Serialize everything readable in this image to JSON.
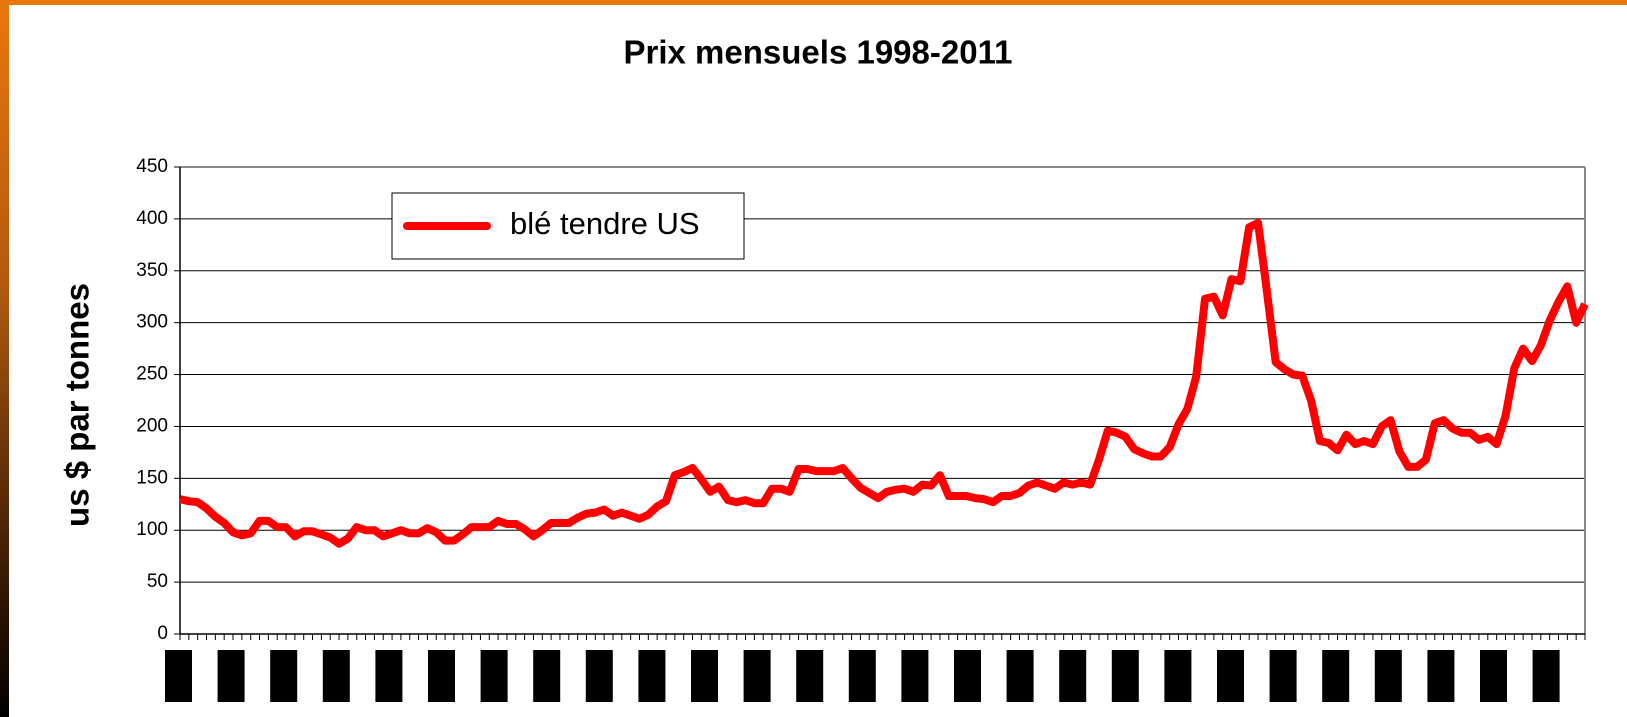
{
  "chart_data": {
    "type": "line",
    "title": "Prix mensuels 1998-2011",
    "ylabel": "us $ par tonnes",
    "legend": "upper left",
    "grid": true,
    "ylim": [
      0,
      450
    ],
    "yticks": [
      0,
      50,
      100,
      150,
      200,
      250,
      300,
      350,
      400,
      450
    ],
    "categories": [
      null,
      null,
      null,
      null,
      null,
      null,
      null,
      null,
      null,
      null,
      null,
      null,
      null,
      null,
      null,
      null,
      null,
      null,
      null,
      null,
      null,
      null,
      null,
      null,
      null,
      null,
      null,
      null,
      null,
      null,
      null,
      null,
      null,
      null,
      null,
      null,
      null,
      null,
      null,
      null,
      null,
      null,
      null,
      null,
      null,
      null,
      null,
      null,
      null,
      null,
      null,
      null,
      null,
      null,
      null,
      null,
      null,
      null,
      null,
      null,
      null,
      null,
      null,
      null,
      null,
      null,
      null,
      null,
      null,
      null,
      null,
      null,
      null,
      null,
      null,
      null,
      null,
      null,
      null,
      null,
      null,
      null,
      null,
      null,
      null,
      null,
      null,
      null,
      null,
      null,
      null,
      null,
      null,
      null,
      null,
      null,
      null,
      null,
      null,
      null,
      null,
      null,
      null,
      null,
      null,
      null,
      null,
      null,
      null,
      null,
      null,
      null,
      null,
      null,
      null,
      null,
      null,
      null,
      null,
      null,
      null,
      null,
      null,
      null,
      null,
      null,
      null,
      null,
      null,
      null,
      null,
      null,
      null,
      null,
      null,
      null,
      null,
      null,
      null,
      null,
      null,
      null,
      null,
      null,
      null,
      null,
      null,
      null,
      null,
      null,
      null,
      null,
      null,
      null,
      null,
      null,
      null,
      null,
      null,
      null
    ],
    "series": [
      {
        "name": "blé tendre US",
        "color": "#ff0000",
        "values": [
          130,
          128,
          127,
          121,
          113,
          107,
          98,
          95,
          97,
          109,
          109,
          103,
          103,
          94,
          99,
          99,
          96,
          93,
          87,
          92,
          103,
          100,
          100,
          94,
          97,
          100,
          97,
          97,
          102,
          98,
          90,
          90,
          96,
          103,
          103,
          103,
          109,
          106,
          106,
          101,
          94,
          100,
          107,
          107,
          107,
          112,
          116,
          117,
          120,
          114,
          117,
          114,
          111,
          115,
          123,
          128,
          153,
          156,
          160,
          149,
          137,
          142,
          129,
          127,
          129,
          126,
          126,
          140,
          140,
          137,
          159,
          159,
          157,
          157,
          157,
          160,
          150,
          141,
          136,
          131,
          137,
          139,
          140,
          137,
          144,
          143,
          153,
          133,
          133,
          133,
          131,
          130,
          127,
          133,
          133,
          136,
          143,
          146,
          143,
          140,
          146,
          144,
          146,
          144,
          168,
          196,
          194,
          190,
          178,
          174,
          171,
          171,
          180,
          202,
          217,
          248,
          323,
          325,
          307,
          342,
          340,
          392,
          396,
          330,
          262,
          255,
          250,
          249,
          225,
          186,
          184,
          177,
          192,
          183,
          186,
          183,
          200,
          206,
          176,
          161,
          161,
          168,
          203,
          206,
          198,
          194,
          194,
          187,
          190,
          183,
          210,
          256,
          275,
          263,
          278,
          302,
          320,
          335,
          300,
          318
        ]
      }
    ]
  }
}
